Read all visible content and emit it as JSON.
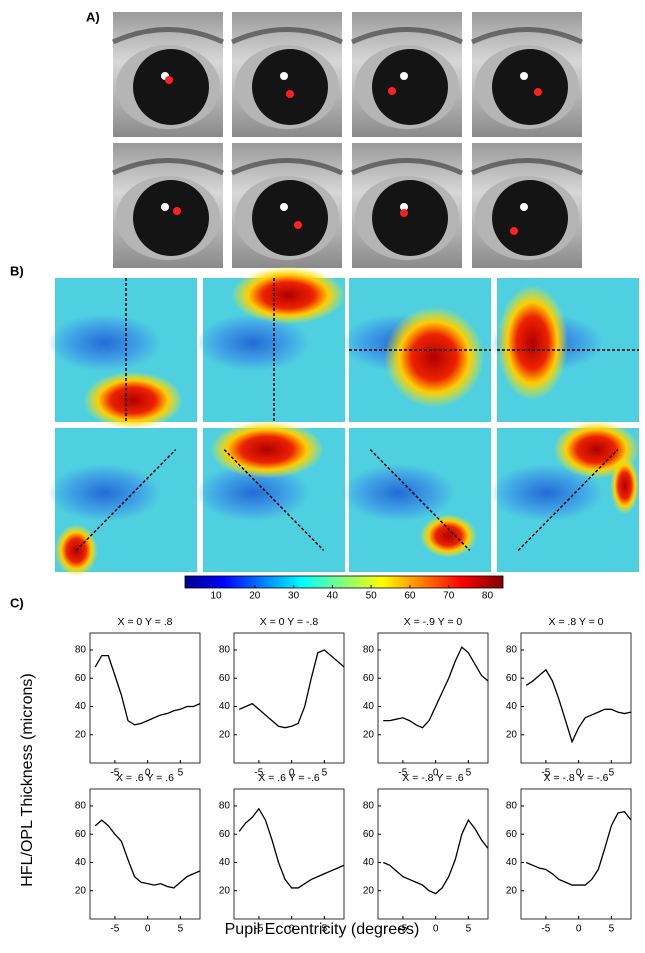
{
  "panel_labels": [
    "A)",
    "B)",
    "C)"
  ],
  "y_label": "HFL/OPL Thickness (microns)",
  "x_label": "Pupil Eccentricity (degrees)",
  "colorbar": {
    "lim": [
      2,
      84
    ],
    "ticks": [
      10,
      20,
      30,
      40,
      50,
      60,
      70,
      80
    ]
  },
  "chart_data": [
    {
      "type": "line",
      "title": "X = 0 Y = .8",
      "color": "#000000",
      "xlim": [
        -8.8,
        8
      ],
      "ylim": [
        0,
        92
      ],
      "xticks": [
        -5,
        0,
        5
      ],
      "yticks": [
        20,
        40,
        60,
        80
      ],
      "x": [
        -8,
        -7,
        -6,
        -5,
        -4,
        -3,
        -2,
        -1,
        0,
        1,
        2,
        3,
        4,
        5,
        6,
        7,
        8
      ],
      "values": [
        68,
        76,
        76,
        62,
        48,
        30,
        27,
        28,
        30,
        32,
        34,
        35,
        37,
        38,
        40,
        40,
        42
      ]
    },
    {
      "type": "line",
      "title": "X = 0 Y = -.8",
      "color": "#000000",
      "xlim": [
        -8.8,
        8
      ],
      "ylim": [
        0,
        92
      ],
      "xticks": [
        -5,
        0,
        5
      ],
      "yticks": [
        20,
        40,
        60,
        80
      ],
      "x": [
        -8,
        -7,
        -6,
        -5,
        -4,
        -3,
        -2,
        -1,
        0,
        1,
        2,
        3,
        4,
        5,
        6,
        7,
        8
      ],
      "values": [
        38,
        40,
        42,
        38,
        34,
        30,
        26,
        25,
        26,
        28,
        40,
        60,
        78,
        80,
        76,
        72,
        68
      ]
    },
    {
      "type": "line",
      "title": "X = -.9 Y = 0",
      "color": "#000000",
      "xlim": [
        -8.8,
        8
      ],
      "ylim": [
        0,
        92
      ],
      "xticks": [
        -5,
        0,
        5
      ],
      "yticks": [
        20,
        40,
        60,
        80
      ],
      "x": [
        -8,
        -7,
        -6,
        -5,
        -4,
        -3,
        -2,
        -1,
        0,
        1,
        2,
        3,
        4,
        5,
        6,
        7,
        8
      ],
      "values": [
        30,
        30,
        31,
        32,
        30,
        27,
        25,
        30,
        40,
        50,
        60,
        72,
        82,
        78,
        70,
        62,
        58
      ]
    },
    {
      "type": "line",
      "title": "X = .8 Y = 0",
      "color": "#000000",
      "xlim": [
        -8.8,
        8
      ],
      "ylim": [
        0,
        92
      ],
      "xticks": [
        -5,
        0,
        5
      ],
      "yticks": [
        20,
        40,
        60,
        80
      ],
      "x": [
        -8,
        -7,
        -6,
        -5,
        -4,
        -3,
        -2,
        -1,
        0,
        1,
        2,
        3,
        4,
        5,
        6,
        7,
        8
      ],
      "values": [
        55,
        58,
        62,
        66,
        58,
        45,
        30,
        15,
        25,
        32,
        34,
        36,
        38,
        38,
        36,
        35,
        36
      ]
    },
    {
      "type": "line",
      "title": "X = .6 Y = .6",
      "color": "#000000",
      "xlim": [
        -8.8,
        8
      ],
      "ylim": [
        0,
        92
      ],
      "xticks": [
        -5,
        0,
        5
      ],
      "yticks": [
        20,
        40,
        60,
        80
      ],
      "x": [
        -8,
        -7,
        -6,
        -5,
        -4,
        -3,
        -2,
        -1,
        0,
        1,
        2,
        3,
        4,
        5,
        6,
        7,
        8
      ],
      "values": [
        66,
        70,
        66,
        60,
        55,
        42,
        30,
        26,
        25,
        24,
        25,
        23,
        22,
        26,
        30,
        32,
        34
      ]
    },
    {
      "type": "line",
      "title": "X = .6 Y = -.6",
      "color": "#000000",
      "xlim": [
        -8.8,
        8
      ],
      "ylim": [
        0,
        92
      ],
      "xticks": [
        -5,
        0,
        5
      ],
      "yticks": [
        20,
        40,
        60,
        80
      ],
      "x": [
        -8,
        -7,
        -6,
        -5,
        -4,
        -3,
        -2,
        -1,
        0,
        1,
        2,
        3,
        4,
        5,
        6,
        7,
        8
      ],
      "values": [
        62,
        68,
        72,
        78,
        70,
        56,
        40,
        28,
        22,
        22,
        25,
        28,
        30,
        32,
        34,
        36,
        38
      ]
    },
    {
      "type": "line",
      "title": "X = -.8 Y = .6",
      "color": "#000000",
      "xlim": [
        -8.8,
        8
      ],
      "ylim": [
        0,
        92
      ],
      "xticks": [
        -5,
        0,
        5
      ],
      "yticks": [
        20,
        40,
        60,
        80
      ],
      "x": [
        -8,
        -7,
        -6,
        -5,
        -4,
        -3,
        -2,
        -1,
        0,
        1,
        2,
        3,
        4,
        5,
        6,
        7,
        8
      ],
      "values": [
        40,
        38,
        34,
        30,
        28,
        26,
        24,
        20,
        18,
        22,
        30,
        42,
        60,
        70,
        64,
        56,
        50
      ]
    },
    {
      "type": "line",
      "title": "X = -.8 Y = -.6",
      "color": "#000000",
      "xlim": [
        -8.8,
        8
      ],
      "ylim": [
        0,
        92
      ],
      "xticks": [
        -5,
        0,
        5
      ],
      "yticks": [
        20,
        40,
        60,
        80
      ],
      "x": [
        -8,
        -7,
        -6,
        -5,
        -4,
        -3,
        -2,
        -1,
        0,
        1,
        2,
        3,
        4,
        5,
        6,
        7,
        8
      ],
      "values": [
        40,
        38,
        36,
        35,
        32,
        28,
        26,
        24,
        24,
        24,
        28,
        35,
        50,
        66,
        75,
        76,
        70
      ]
    }
  ]
}
